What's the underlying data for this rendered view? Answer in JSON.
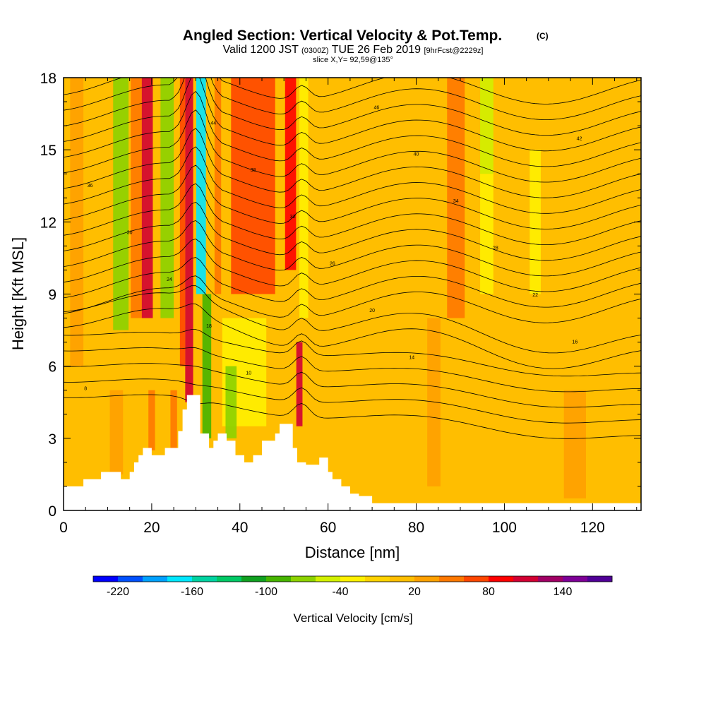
{
  "title": {
    "main": "Angled Section: Vertical Velocity & Pot.Temp.",
    "main_tag": "(C)",
    "sub_prefix": "Valid 1200 JST",
    "sub_small1": "(0300Z)",
    "sub_mid": "TUE 26 Feb 2019",
    "sub_small2": "[9hrFcst@2229z]",
    "slice": "slice X,Y= 92,59@135°"
  },
  "chart_data": {
    "type": "heatmap",
    "xlabel": "Distance [nm]",
    "ylabel": "Height [Kft MSL]",
    "xlim": [
      0,
      131
    ],
    "ylim": [
      0,
      18
    ],
    "x_ticks": [
      0,
      20,
      40,
      60,
      80,
      100,
      120
    ],
    "y_ticks": [
      0,
      3,
      6,
      9,
      12,
      15,
      18
    ],
    "colorbar": {
      "label": "Vertical Velocity [cm/s]",
      "tick_labels": [
        -220,
        -160,
        -100,
        -40,
        20,
        80,
        140
      ],
      "min": -240,
      "max": 180,
      "step": 20,
      "colors": [
        "#0000ff",
        "#0050ff",
        "#00a0ff",
        "#00e6ff",
        "#00d2a0",
        "#00c864",
        "#10a020",
        "#46b400",
        "#8cd200",
        "#d2f000",
        "#fff000",
        "#ffd200",
        "#ffbe00",
        "#ffa000",
        "#ff7800",
        "#ff4600",
        "#ff0000",
        "#d20032",
        "#a00064",
        "#7d0096",
        "#500096"
      ]
    },
    "background_value": 10,
    "velocity_bands": [
      {
        "x": 3,
        "w": 3,
        "v": 30,
        "y0": 6,
        "y1": 18
      },
      {
        "x": 13,
        "w": 3.5,
        "v": -80,
        "y0": 7.5,
        "y1": 18
      },
      {
        "x": 16.5,
        "w": 2.5,
        "v": 40,
        "y0": 8,
        "y1": 18
      },
      {
        "x": 19,
        "w": 2.5,
        "v": 110,
        "y0": 8,
        "y1": 18
      },
      {
        "x": 23.5,
        "w": 3,
        "v": -80,
        "y0": 8,
        "y1": 18
      },
      {
        "x": 27,
        "w": 1.2,
        "v": 60,
        "y0": 6,
        "y1": 18
      },
      {
        "x": 28.5,
        "w": 1.8,
        "v": 110,
        "y0": 4.5,
        "y1": 18
      },
      {
        "x": 31.2,
        "w": 2.2,
        "v": -170,
        "y0": 9,
        "y1": 18
      },
      {
        "x": 32.5,
        "w": 2,
        "v": -90,
        "y0": 3,
        "y1": 9
      },
      {
        "x": 35,
        "w": 1.5,
        "v": 50,
        "y0": 9,
        "y1": 18
      },
      {
        "x": 43,
        "w": 10,
        "v": 70,
        "y0": 9,
        "y1": 18
      },
      {
        "x": 51.5,
        "w": 2.5,
        "v": 90,
        "y0": 10,
        "y1": 18
      },
      {
        "x": 54.5,
        "w": 2,
        "v": -40,
        "y0": 8,
        "y1": 18
      },
      {
        "x": 53.5,
        "w": 1.4,
        "v": 110,
        "y0": 3.5,
        "y1": 7
      },
      {
        "x": 41,
        "w": 10,
        "v": -40,
        "y0": 3.5,
        "y1": 8
      },
      {
        "x": 38,
        "w": 2.5,
        "v": -80,
        "y0": 3,
        "y1": 6
      },
      {
        "x": 89,
        "w": 4,
        "v": 50,
        "y0": 8,
        "y1": 18
      },
      {
        "x": 96,
        "w": 3,
        "v": -60,
        "y0": 14,
        "y1": 18
      },
      {
        "x": 96,
        "w": 3,
        "v": -40,
        "y0": 9,
        "y1": 14
      },
      {
        "x": 107,
        "w": 2.5,
        "v": -40,
        "y0": 9,
        "y1": 15
      },
      {
        "x": 20,
        "w": 1.5,
        "v": 50,
        "y0": 2.5,
        "y1": 5
      },
      {
        "x": 25,
        "w": 1.5,
        "v": 50,
        "y0": 2.5,
        "y1": 5
      },
      {
        "x": 12,
        "w": 3,
        "v": 30,
        "y0": 1.5,
        "y1": 5
      },
      {
        "x": 84,
        "w": 3,
        "v": 30,
        "y0": 1,
        "y1": 8
      },
      {
        "x": 116,
        "w": 5,
        "v": 30,
        "y0": 0.5,
        "y1": 5
      }
    ],
    "terrain": [
      [
        0,
        1
      ],
      [
        4.5,
        1
      ],
      [
        4.5,
        1.3
      ],
      [
        8.5,
        1.3
      ],
      [
        8.5,
        1.6
      ],
      [
        13,
        1.6
      ],
      [
        13,
        1.3
      ],
      [
        15,
        1.3
      ],
      [
        15,
        1.6
      ],
      [
        16,
        1.6
      ],
      [
        16,
        2
      ],
      [
        17,
        2
      ],
      [
        17,
        2.3
      ],
      [
        18,
        2.3
      ],
      [
        18,
        2.6
      ],
      [
        20,
        2.6
      ],
      [
        20,
        2.3
      ],
      [
        23,
        2.3
      ],
      [
        23,
        2.6
      ],
      [
        26,
        2.6
      ],
      [
        26,
        3.3
      ],
      [
        27,
        3.3
      ],
      [
        27,
        4.2
      ],
      [
        28,
        4.2
      ],
      [
        28,
        4.8
      ],
      [
        31,
        4.8
      ],
      [
        31,
        3.2
      ],
      [
        33,
        3.2
      ],
      [
        33,
        2.6
      ],
      [
        34,
        2.6
      ],
      [
        34,
        2.9
      ],
      [
        35,
        2.9
      ],
      [
        35,
        3.2
      ],
      [
        37,
        3.2
      ],
      [
        37,
        2.9
      ],
      [
        39,
        2.9
      ],
      [
        39,
        2.3
      ],
      [
        41,
        2.3
      ],
      [
        41,
        2
      ],
      [
        43,
        2
      ],
      [
        43,
        2.3
      ],
      [
        45,
        2.3
      ],
      [
        45,
        2.9
      ],
      [
        48,
        2.9
      ],
      [
        48,
        3.2
      ],
      [
        49,
        3.2
      ],
      [
        49,
        3.6
      ],
      [
        52,
        3.6
      ],
      [
        52,
        2.6
      ],
      [
        53,
        2.6
      ],
      [
        53,
        2
      ],
      [
        55,
        2
      ],
      [
        55,
        1.9
      ],
      [
        58,
        1.9
      ],
      [
        58,
        2.2
      ],
      [
        60,
        2.2
      ],
      [
        60,
        1.6
      ],
      [
        61,
        1.6
      ],
      [
        61,
        1.3
      ],
      [
        63,
        1.3
      ],
      [
        63,
        1
      ],
      [
        65,
        1
      ],
      [
        65,
        0.7
      ],
      [
        67,
        0.7
      ],
      [
        67,
        0.6
      ],
      [
        70,
        0.6
      ],
      [
        70,
        0.3
      ],
      [
        131,
        0.3
      ]
    ],
    "contour_annotations": [
      "8",
      "10",
      "14",
      "16",
      "18",
      "20",
      "22",
      "24",
      "26",
      "28",
      "30",
      "32",
      "34",
      "36",
      "38",
      "40",
      "42",
      "44",
      "46"
    ]
  }
}
